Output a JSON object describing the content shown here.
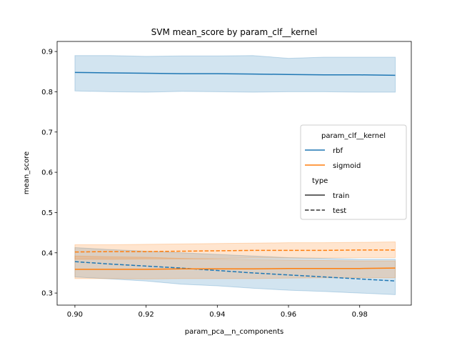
{
  "chart_data": {
    "type": "line",
    "title": "SVM mean_score by param_clf__kernel",
    "xlabel": "param_pca__n_components",
    "ylabel": "mean_score",
    "xlim": [
      0.895,
      0.9945
    ],
    "ylim": [
      0.27,
      0.925
    ],
    "xticks": [
      0.9,
      0.92,
      0.94,
      0.96,
      0.98
    ],
    "xtick_labels": [
      "0.90",
      "0.92",
      "0.94",
      "0.96",
      "0.98"
    ],
    "yticks": [
      0.3,
      0.4,
      0.5,
      0.6,
      0.7,
      0.8,
      0.9
    ],
    "ytick_labels": [
      "0.3",
      "0.4",
      "0.5",
      "0.6",
      "0.7",
      "0.8",
      "0.9"
    ],
    "grid": false,
    "legend": {
      "placement": "center-right",
      "hue_title": "param_clf__kernel",
      "style_title": "type",
      "hue_entries": [
        {
          "label": "rbf",
          "color": "#1f77b4"
        },
        {
          "label": "sigmoid",
          "color": "#ff7f0e"
        }
      ],
      "style_entries": [
        {
          "label": "train",
          "dash": "solid"
        },
        {
          "label": "test",
          "dash": "dashed"
        }
      ]
    },
    "series": [
      {
        "kernel": "rbf",
        "type": "train",
        "color": "#1f77b4",
        "dash": "solid",
        "x": [
          0.9,
          0.91,
          0.92,
          0.93,
          0.94,
          0.95,
          0.96,
          0.97,
          0.98,
          0.99
        ],
        "y": [
          0.848,
          0.847,
          0.846,
          0.845,
          0.845,
          0.844,
          0.843,
          0.842,
          0.842,
          0.841
        ],
        "lower": [
          0.802,
          0.8,
          0.799,
          0.801,
          0.8,
          0.799,
          0.8,
          0.8,
          0.799,
          0.799
        ],
        "upper": [
          0.89,
          0.89,
          0.888,
          0.889,
          0.889,
          0.89,
          0.883,
          0.886,
          0.886,
          0.886
        ]
      },
      {
        "kernel": "rbf",
        "type": "test",
        "color": "#1f77b4",
        "dash": "dashed",
        "x": [
          0.9,
          0.91,
          0.92,
          0.93,
          0.94,
          0.95,
          0.96,
          0.97,
          0.98,
          0.99
        ],
        "y": [
          0.378,
          0.372,
          0.367,
          0.362,
          0.356,
          0.35,
          0.345,
          0.34,
          0.335,
          0.33
        ],
        "lower": [
          0.34,
          0.335,
          0.33,
          0.322,
          0.318,
          0.312,
          0.307,
          0.304,
          0.3,
          0.296
        ],
        "upper": [
          0.413,
          0.408,
          0.404,
          0.4,
          0.396,
          0.392,
          0.388,
          0.386,
          0.384,
          0.384
        ]
      },
      {
        "kernel": "sigmoid",
        "type": "train",
        "color": "#ff7f0e",
        "dash": "solid",
        "x": [
          0.9,
          0.91,
          0.92,
          0.93,
          0.94,
          0.95,
          0.96,
          0.97,
          0.98,
          0.99
        ],
        "y": [
          0.359,
          0.359,
          0.359,
          0.36,
          0.36,
          0.36,
          0.361,
          0.361,
          0.361,
          0.362
        ],
        "lower": [
          0.336,
          0.336,
          0.335,
          0.336,
          0.336,
          0.336,
          0.337,
          0.338,
          0.338,
          0.338
        ],
        "upper": [
          0.392,
          0.39,
          0.389,
          0.386,
          0.384,
          0.383,
          0.382,
          0.381,
          0.38,
          0.38
        ]
      },
      {
        "kernel": "sigmoid",
        "type": "test",
        "color": "#ff7f0e",
        "dash": "dashed",
        "x": [
          0.9,
          0.91,
          0.92,
          0.93,
          0.94,
          0.95,
          0.96,
          0.97,
          0.98,
          0.99
        ],
        "y": [
          0.402,
          0.403,
          0.403,
          0.404,
          0.405,
          0.406,
          0.406,
          0.406,
          0.407,
          0.407
        ],
        "lower": [
          0.384,
          0.384,
          0.385,
          0.385,
          0.386,
          0.387,
          0.387,
          0.387,
          0.388,
          0.388
        ],
        "upper": [
          0.42,
          0.42,
          0.421,
          0.422,
          0.423,
          0.424,
          0.425,
          0.425,
          0.426,
          0.427
        ]
      }
    ]
  }
}
